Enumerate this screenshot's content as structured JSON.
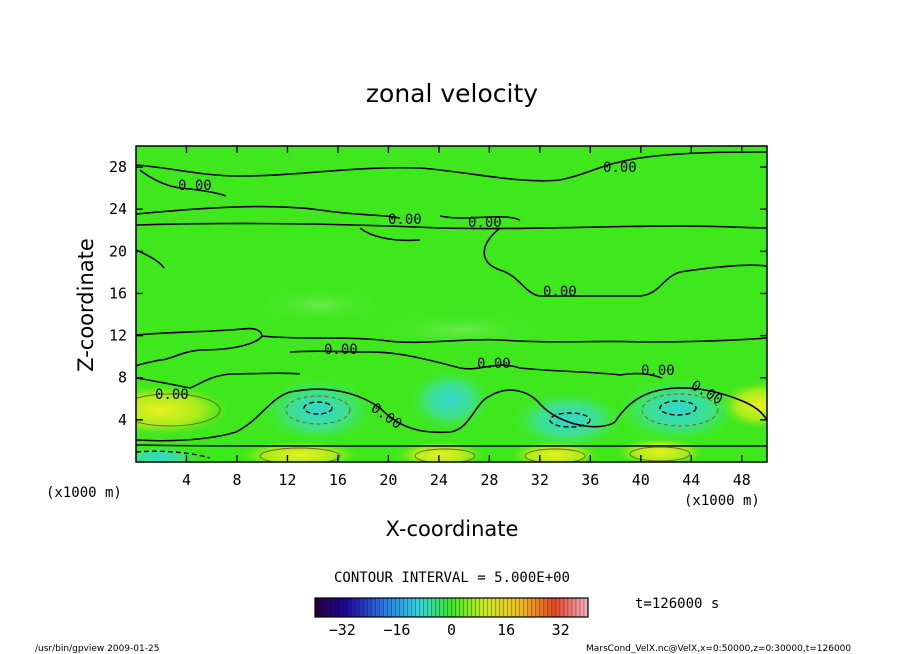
{
  "chart_data": {
    "type": "heatmap",
    "title": "zonal velocity",
    "xlabel": "X-coordinate",
    "ylabel": "Z-coordinate",
    "x_unit": "(x1000 m)",
    "y_unit": "(x1000 m)",
    "xlim": [
      0,
      50
    ],
    "ylim": [
      0,
      30
    ],
    "x_ticks": [
      4,
      8,
      12,
      16,
      20,
      24,
      28,
      32,
      36,
      40,
      44,
      48
    ],
    "y_ticks": [
      4,
      8,
      12,
      16,
      20,
      24,
      28
    ],
    "contour_interval_label": "CONTOUR INTERVAL = 5.000E+00",
    "contour_labels": [
      "0.00",
      "0.00",
      "0.00",
      "0.00",
      "0.00",
      "0.00",
      "0.00",
      "0.00",
      "0.00",
      "0.00",
      "0.00"
    ],
    "time_label": "t=126000 s",
    "colorbar": {
      "min": -40,
      "max": 40,
      "ticks": [
        -32,
        -16,
        0,
        16,
        32
      ]
    },
    "colors": {
      "background_field": "#33ee11",
      "positive_core": "#ddee22",
      "negative_core": "#44dddd"
    }
  },
  "footer": {
    "left": "/usr/bin/gpview   2009-01-25",
    "right": "MarsCond_VelX.nc@VelX,x=0:50000,z=0:30000,t=126000"
  }
}
